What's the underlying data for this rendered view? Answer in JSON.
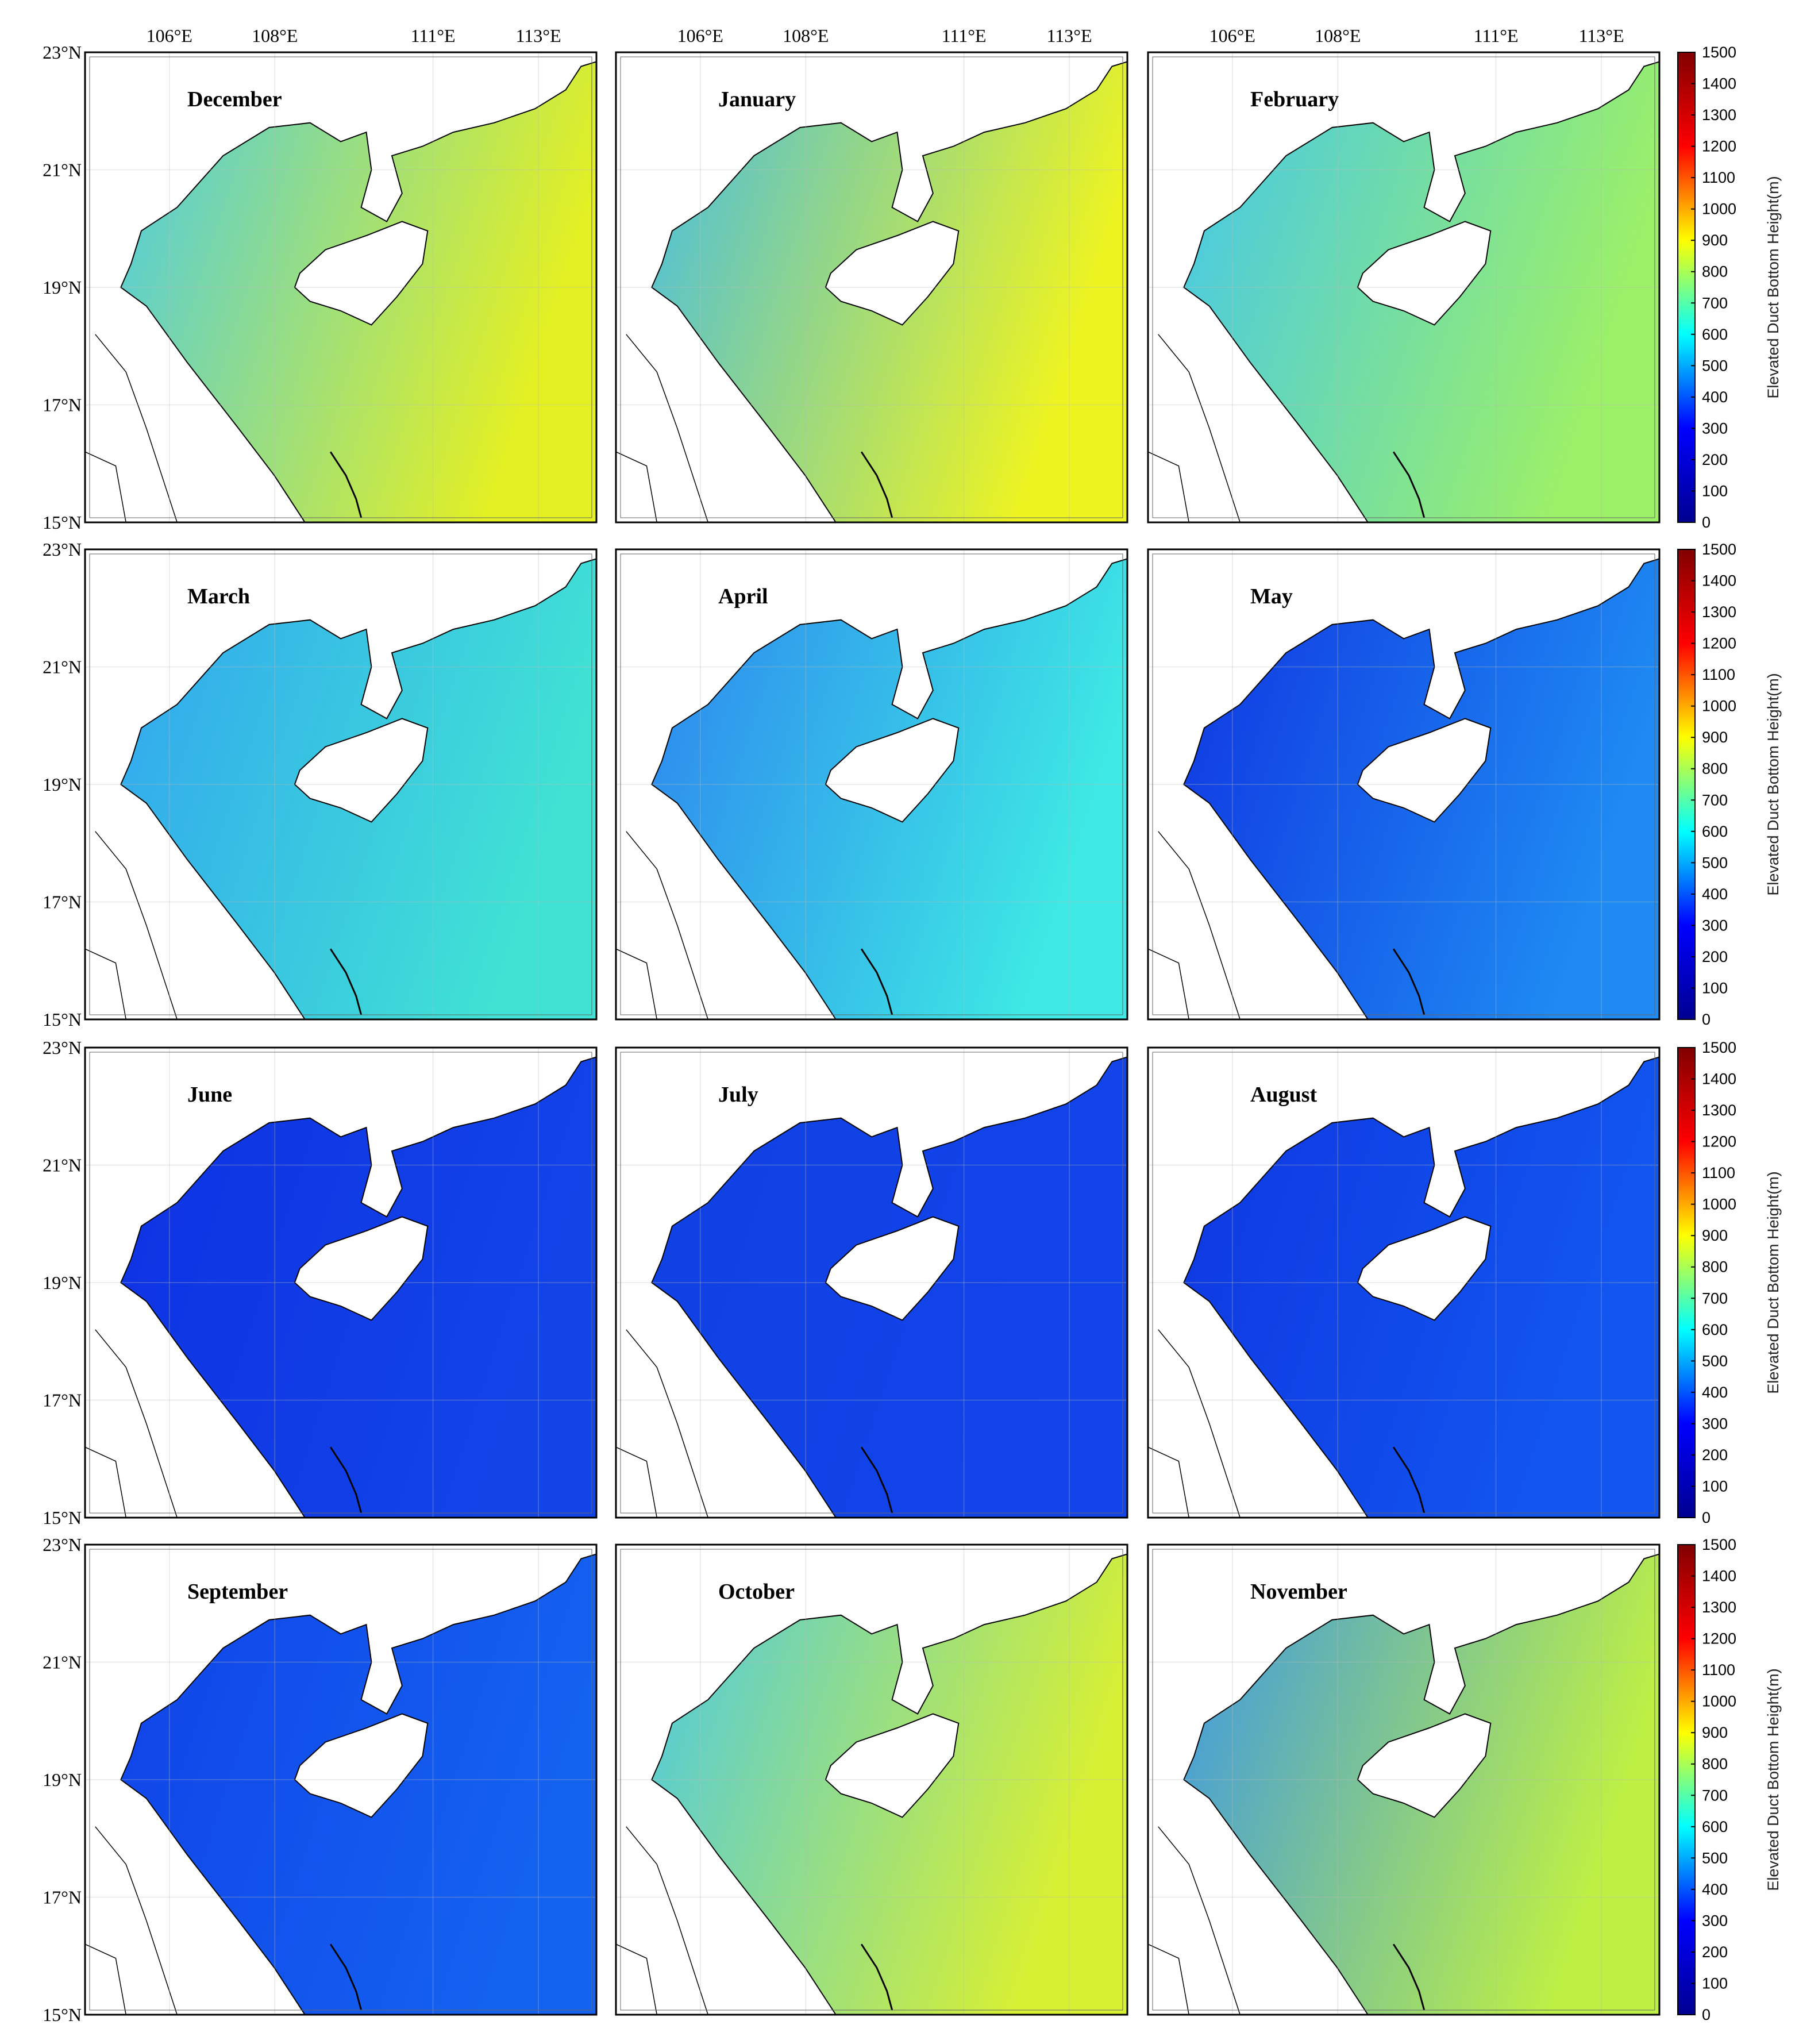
{
  "chart_data": {
    "type": "map",
    "panels": [
      {
        "title": "December",
        "colors": [
          "#3fc8f4",
          "#e4f022"
        ]
      },
      {
        "title": "January",
        "colors": [
          "#38b8f2",
          "#eef420"
        ]
      },
      {
        "title": "February",
        "colors": [
          "#3cc4f6",
          "#9cf068"
        ]
      },
      {
        "title": "March",
        "colors": [
          "#30a0f2",
          "#40e2d4"
        ]
      },
      {
        "title": "April",
        "colors": [
          "#2a7cf0",
          "#3ee8e4"
        ]
      },
      {
        "title": "May",
        "colors": [
          "#0e2ee0",
          "#1e8af2"
        ]
      },
      {
        "title": "June",
        "colors": [
          "#0e30e2",
          "#1244e8"
        ]
      },
      {
        "title": "July",
        "colors": [
          "#1040e2",
          "#1244ea"
        ]
      },
      {
        "title": "August",
        "colors": [
          "#0e34e0",
          "#1256f0"
        ]
      },
      {
        "title": "September",
        "colors": [
          "#1040e8",
          "#1462f0"
        ]
      },
      {
        "title": "October",
        "colors": [
          "#40c6f2",
          "#d8f032"
        ]
      },
      {
        "title": "November",
        "colors": [
          "#3090f2",
          "#bef044"
        ]
      }
    ],
    "xlim": [
      104.4,
      114.1
    ],
    "ylim": [
      15,
      23
    ],
    "xticks": [
      {
        "value": 106,
        "label": "106°E"
      },
      {
        "value": 108,
        "label": "108°E"
      },
      {
        "value": 111,
        "label": "111°E"
      },
      {
        "value": 113,
        "label": "113°E"
      }
    ],
    "yticks": [
      {
        "value": 15,
        "label": "15°N"
      },
      {
        "value": 17,
        "label": "17°N"
      },
      {
        "value": 19,
        "label": "19°N"
      },
      {
        "value": 21,
        "label": "21°N"
      },
      {
        "value": 23,
        "label": "23°N"
      }
    ],
    "colorbar": {
      "label": "Elevated Duct Bottom Height(m)",
      "lim": [
        0,
        1500
      ],
      "ticks": [
        0,
        100,
        200,
        300,
        400,
        500,
        600,
        700,
        800,
        900,
        1000,
        1100,
        1200,
        1300,
        1400,
        1500
      ],
      "colors": [
        "#00008f",
        "#0000ff",
        "#00ffff",
        "#ffff00",
        "#ff0000",
        "#800000"
      ]
    }
  }
}
